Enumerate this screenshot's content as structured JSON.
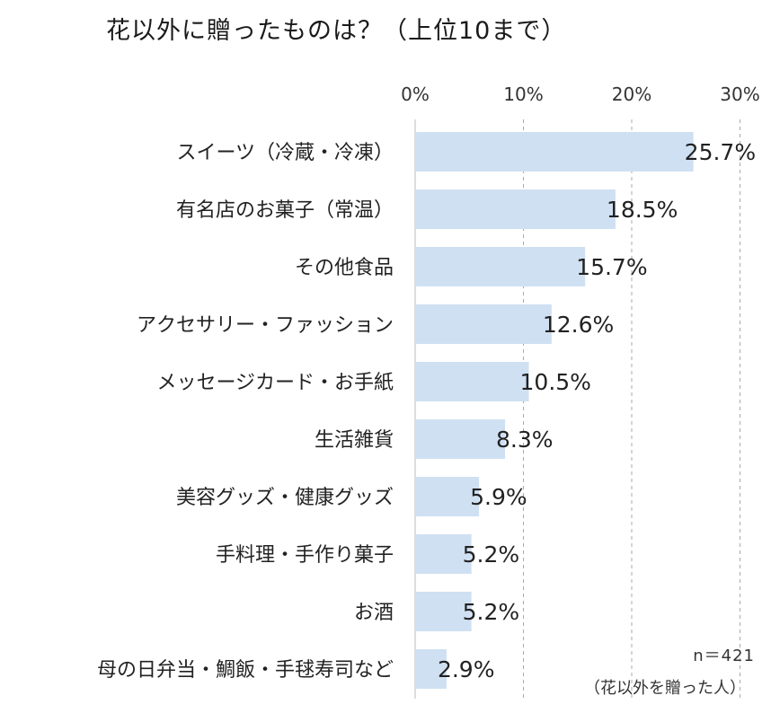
{
  "chart_data": {
    "type": "bar",
    "orientation": "horizontal",
    "title": "花以外に贈ったものは？（上位10まで）",
    "categories": [
      "スイーツ（冷蔵・冷凍）",
      "有名店のお菓子（常温）",
      "その他食品",
      "アクセサリー・ファッション",
      "メッセージカード・お手紙",
      "生活雑貨",
      "美容グッズ・健康グッズ",
      "手料理・手作り菓子",
      "お酒",
      "母の日弁当・鯛飯・手毬寿司など"
    ],
    "values": [
      25.7,
      18.5,
      15.7,
      12.6,
      10.5,
      8.3,
      5.9,
      5.2,
      5.2,
      2.9
    ],
    "value_labels": [
      "25.7%",
      "18.5%",
      "15.7%",
      "12.6%",
      "10.5%",
      "8.3%",
      "5.9%",
      "5.2%",
      "5.2%",
      "2.9%"
    ],
    "xlim": [
      0,
      30
    ],
    "x_ticks": [
      0,
      10,
      20,
      30
    ],
    "x_tick_labels": [
      "0%",
      "10%",
      "20%",
      "30%"
    ],
    "grid": true,
    "bar_color": "#cfe0f2",
    "grid_color": "#aaaaaa"
  },
  "notes": {
    "sample": "n＝421",
    "population": "（花以外を贈った人）"
  }
}
